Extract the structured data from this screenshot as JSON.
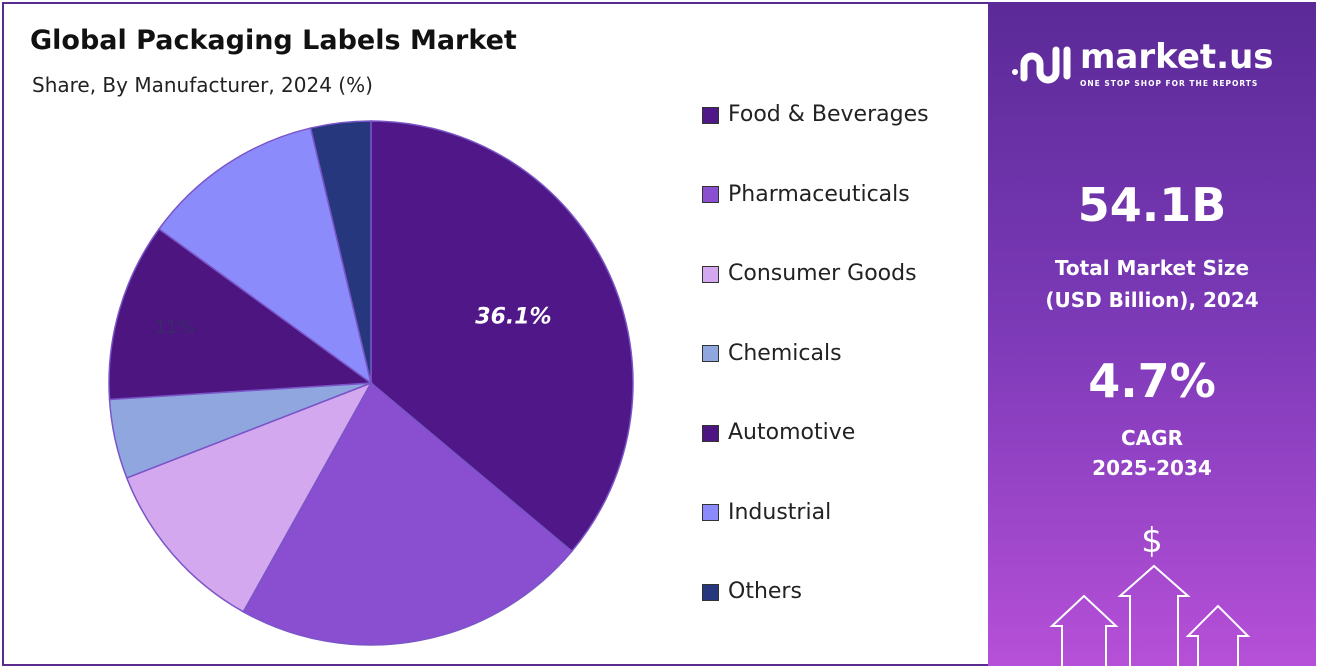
{
  "chart_data": {
    "type": "pie",
    "title": "Global Packaging Labels Market",
    "subtitle": "Share, By Manufacturer, 2024 (%)",
    "categories": [
      "Food & Beverages",
      "Pharmaceuticals",
      "Consumer Goods",
      "Chemicals",
      "Automotive",
      "Industrial",
      "Others"
    ],
    "values": [
      36.1,
      22.0,
      11.0,
      4.9,
      11.0,
      11.3,
      3.7
    ],
    "colors": [
      "#4f1787",
      "#8a4fd0",
      "#d4a8ee",
      "#8fa6de",
      "#4d157f",
      "#8b8bfb",
      "#27377e"
    ],
    "data_labels": [
      {
        "category": "Food & Beverages",
        "text": "36.1%"
      },
      {
        "category": "Automotive",
        "text": "11%"
      }
    ],
    "legend_position": "right",
    "start_angle": "top, clockwise"
  },
  "panel": {
    "brand": "market.us",
    "tagline": "ONE STOP SHOP FOR THE REPORTS",
    "market_size": "54.1B",
    "market_size_label_1": "Total Market Size",
    "market_size_label_2": "(USD Billion), 2024",
    "cagr": "4.7%",
    "cagr_label_1": "CAGR",
    "cagr_label_2": "2025-2034",
    "dollar_icon": "$"
  }
}
